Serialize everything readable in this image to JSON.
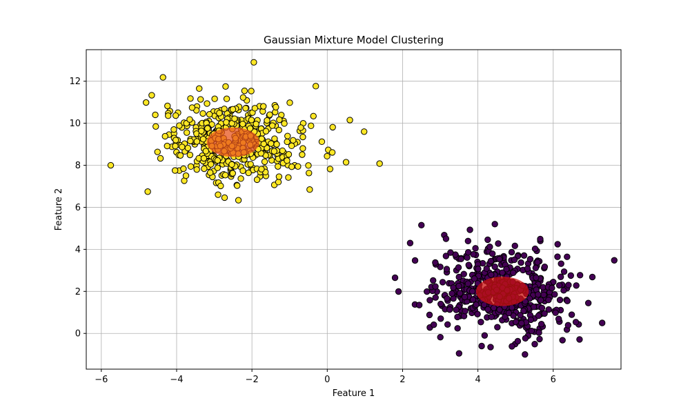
{
  "chart_data": {
    "type": "scatter",
    "title": "Gaussian Mixture Model Clustering",
    "xlabel": "Feature 1",
    "ylabel": "Feature 2",
    "xlim": [
      -6.4,
      7.8
    ],
    "ylim": [
      -1.7,
      13.5
    ],
    "xticks": [
      -6,
      -4,
      -2,
      0,
      2,
      4,
      6
    ],
    "yticks": [
      0,
      2,
      4,
      6,
      8,
      10,
      12
    ],
    "grid": true,
    "legend": "none",
    "clusters": [
      {
        "color": "#fde725",
        "component_color": "#e8551d",
        "mean": [
          -2.5,
          9.1
        ],
        "component_radii": [
          0.7,
          0.7
        ],
        "point_count": 500,
        "notable_points": [
          [
            -5.75,
            8.0
          ],
          [
            0.6,
            10.15
          ],
          [
            -1.95,
            12.9
          ],
          [
            -2.7,
            11.75
          ],
          [
            -3.4,
            11.65
          ],
          [
            -2.9,
            6.6
          ]
        ]
      },
      {
        "color": "#440154",
        "component_color": "#cc1111",
        "mean": [
          4.65,
          2.0
        ],
        "component_radii": [
          0.7,
          0.7
        ],
        "point_count": 500,
        "notable_points": [
          [
            7.3,
            0.5
          ],
          [
            2.5,
            5.15
          ],
          [
            4.45,
            5.2
          ],
          [
            5.25,
            -1.0
          ],
          [
            3.5,
            -0.95
          ],
          [
            4.1,
            -0.6
          ],
          [
            1.8,
            2.65
          ],
          [
            2.2,
            4.3
          ]
        ]
      }
    ]
  }
}
